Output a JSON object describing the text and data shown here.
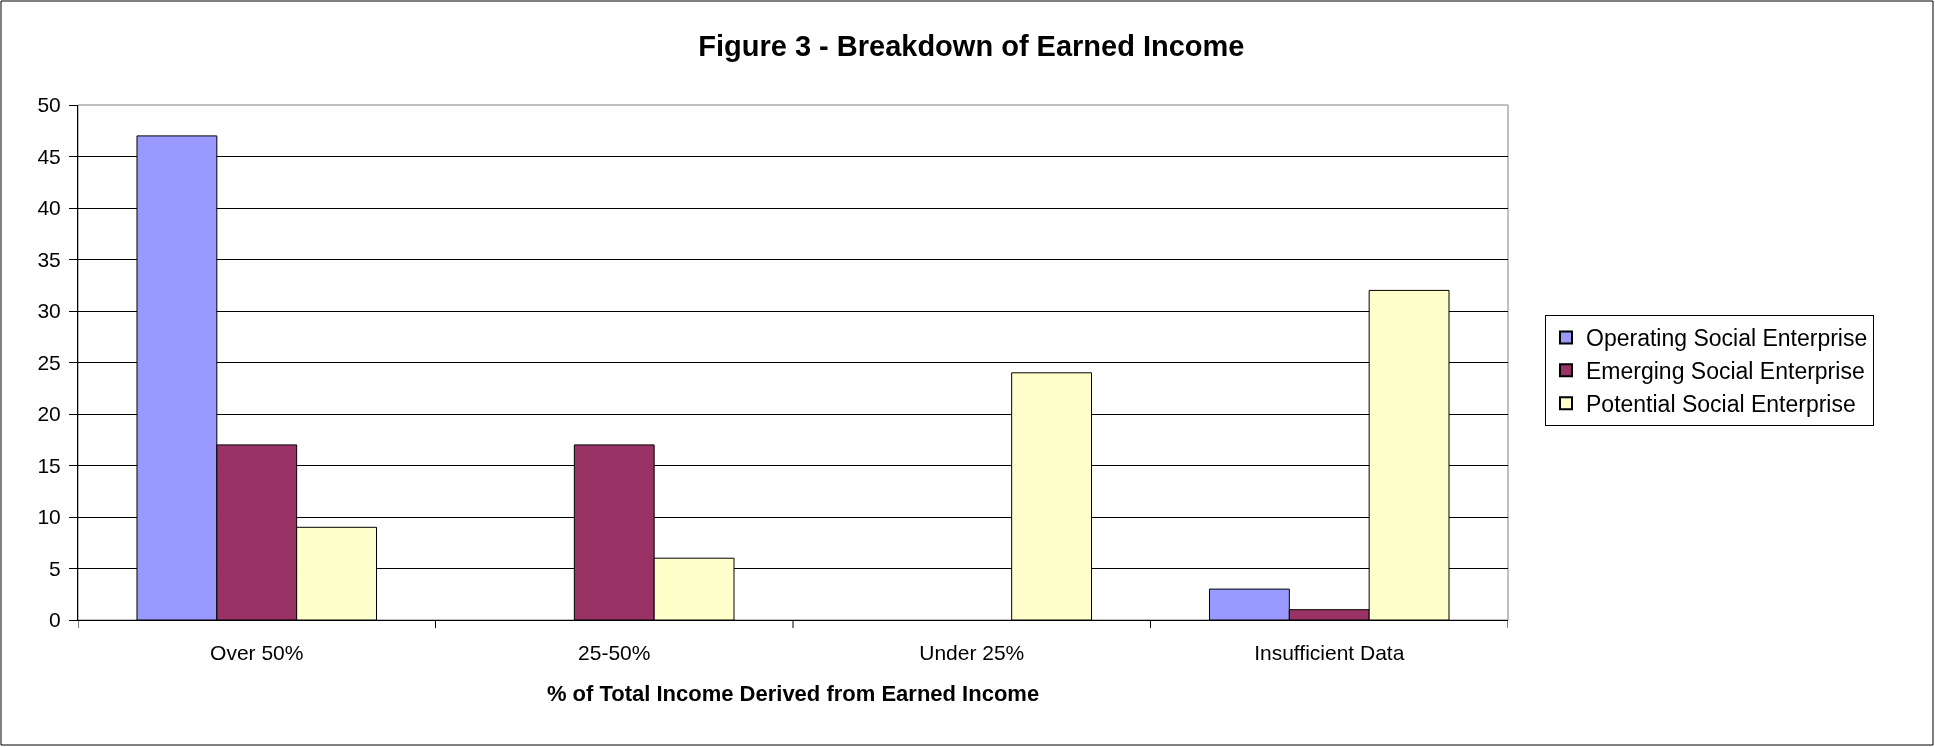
{
  "chart_data": {
    "type": "bar",
    "title": "Figure 3 - Breakdown of Earned Income",
    "xlabel": "% of Total Income Derived from Earned Income",
    "categories": [
      "Over 50%",
      "25-50%",
      "Under 25%",
      "Insufficient Data"
    ],
    "series": [
      {
        "name": "Operating Social Enterprise",
        "color": "#9999ff",
        "values": [
          47,
          0,
          0,
          3
        ]
      },
      {
        "name": "Emerging Social Enterprise",
        "color": "#993366",
        "values": [
          17,
          17,
          0,
          1
        ]
      },
      {
        "name": "Potential Social Enterprise",
        "color": "#ffffcc",
        "values": [
          9,
          6,
          24,
          32
        ]
      }
    ],
    "ylim": [
      0,
      50
    ],
    "yticks": [
      0,
      5,
      10,
      15,
      20,
      25,
      30,
      35,
      40,
      45,
      50
    ],
    "grid": "y",
    "legend": "right"
  }
}
